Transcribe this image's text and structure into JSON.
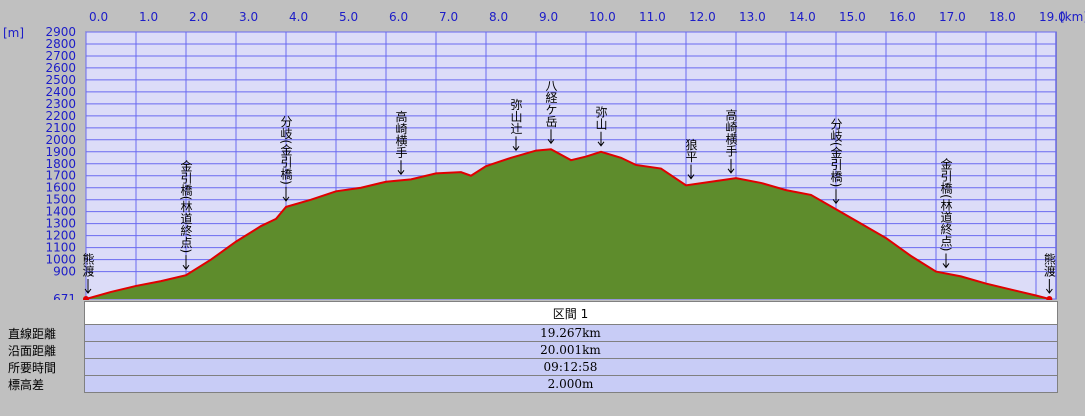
{
  "chart_data": {
    "type": "area",
    "x_label": "[km]",
    "y_label": "[m]",
    "x": [
      0,
      0.5,
      1.0,
      1.5,
      2.0,
      2.5,
      3.0,
      3.5,
      3.8,
      4.0,
      4.5,
      5.0,
      5.5,
      6.0,
      6.5,
      7.0,
      7.5,
      7.7,
      8.0,
      8.5,
      9.0,
      9.3,
      9.7,
      10.0,
      10.3,
      10.7,
      11.0,
      11.5,
      12.0,
      12.5,
      13.0,
      13.5,
      14.0,
      14.5,
      15.0,
      15.5,
      16.0,
      16.5,
      17.0,
      17.5,
      18.0,
      18.5,
      19.0,
      19.267
    ],
    "values": [
      671,
      730,
      780,
      820,
      870,
      1000,
      1150,
      1280,
      1340,
      1440,
      1500,
      1570,
      1600,
      1650,
      1670,
      1720,
      1730,
      1700,
      1780,
      1850,
      1910,
      1921,
      1830,
      1860,
      1900,
      1850,
      1790,
      1760,
      1620,
      1650,
      1680,
      1640,
      1580,
      1540,
      1420,
      1300,
      1180,
      1030,
      900,
      860,
      800,
      750,
      700,
      671
    ],
    "color": "#5e8c2c",
    "line_color": "#e00000",
    "xlim": [
      0,
      19.4
    ],
    "xticks": [
      {
        "value": 0,
        "label": "0.0"
      },
      {
        "value": 1,
        "label": "1.0"
      },
      {
        "value": 2,
        "label": "2.0"
      },
      {
        "value": 3,
        "label": "3.0"
      },
      {
        "value": 4,
        "label": "4.0"
      },
      {
        "value": 5,
        "label": "5.0"
      },
      {
        "value": 6,
        "label": "6.0"
      },
      {
        "value": 7,
        "label": "7.0"
      },
      {
        "value": 8,
        "label": "8.0"
      },
      {
        "value": 9,
        "label": "9.0"
      },
      {
        "value": 10,
        "label": "10.0"
      },
      {
        "value": 11,
        "label": "11.0"
      },
      {
        "value": 12,
        "label": "12.0"
      },
      {
        "value": 13,
        "label": "13.0"
      },
      {
        "value": 14,
        "label": "14.0"
      },
      {
        "value": 15,
        "label": "15.0"
      },
      {
        "value": 16,
        "label": "16.0"
      },
      {
        "value": 17,
        "label": "17.0"
      },
      {
        "value": 18,
        "label": "18.0"
      },
      {
        "value": 19,
        "label": "19.0"
      }
    ],
    "ylim": [
      671,
      2900
    ],
    "yticks": [
      671,
      900,
      1000,
      1100,
      1200,
      1300,
      1400,
      1500,
      1600,
      1700,
      1800,
      1900,
      2000,
      2100,
      2200,
      2300,
      2400,
      2500,
      2600,
      2700,
      2800,
      2900
    ],
    "grid": true,
    "annotations": [
      {
        "text": "熊渡",
        "x": 0
      },
      {
        "text": "金引橋(林道終点)",
        "x": 2.0
      },
      {
        "text": "分岐(金引橋)",
        "x": 4.0
      },
      {
        "text": "高崎横手",
        "x": 6.3
      },
      {
        "text": "弥山辻",
        "x": 8.6
      },
      {
        "text": "八経ケ岳",
        "x": 9.3
      },
      {
        "text": "弥山",
        "x": 10.3
      },
      {
        "text": "狼平",
        "x": 12.1
      },
      {
        "text": "高崎横手",
        "x": 12.9
      },
      {
        "text": "分岐(金引橋)",
        "x": 15.0
      },
      {
        "text": "金引橋(林道終点)",
        "x": 17.2
      },
      {
        "text": "熊渡",
        "x": 19.267
      }
    ]
  },
  "table": {
    "header": "区間 1",
    "rows": [
      [
        "直線距離",
        "19.267km"
      ],
      [
        "沿面距離",
        "20.001km"
      ],
      [
        "所要時間",
        "09:12:58"
      ],
      [
        "標高差",
        "2.000m"
      ]
    ]
  }
}
